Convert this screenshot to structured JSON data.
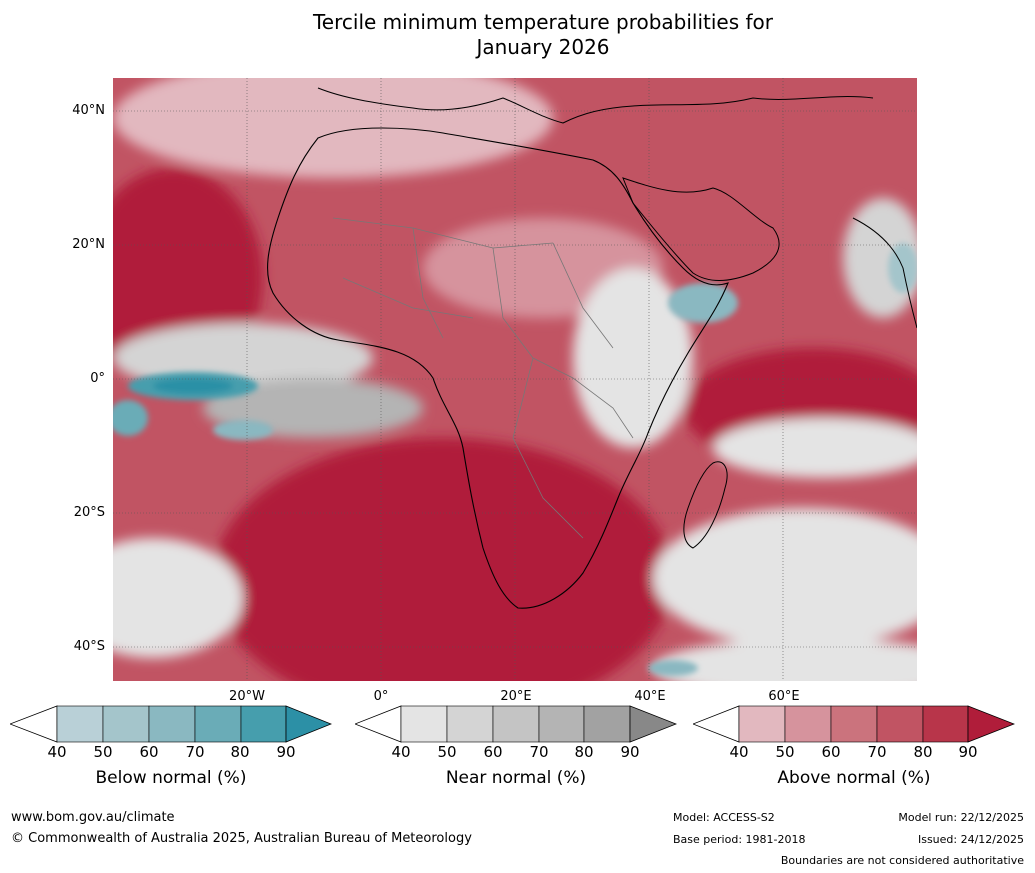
{
  "title": {
    "line1": "Tercile minimum temperature probabilities for",
    "line2": "January 2026"
  },
  "axes": {
    "lat_labels": [
      "40°N",
      "20°N",
      "0°",
      "20°S",
      "40°S"
    ],
    "lon_labels": [
      "20°W",
      "0°",
      "20°E",
      "40°E",
      "60°E"
    ]
  },
  "colorbars": [
    {
      "caption": "Below normal (%)",
      "ticks": [
        "40",
        "50",
        "60",
        "70",
        "80",
        "90"
      ],
      "colors": [
        "#ffffff",
        "#b9d0d7",
        "#a4c5cb",
        "#8ab8c1",
        "#6aacb7",
        "#469ead",
        "#2c90a6"
      ]
    },
    {
      "caption": "Near normal (%)",
      "ticks": [
        "40",
        "50",
        "60",
        "70",
        "80",
        "90"
      ],
      "colors": [
        "#ffffff",
        "#e4e4e4",
        "#d4d4d4",
        "#c4c4c4",
        "#b4b4b4",
        "#a2a2a2",
        "#888888"
      ]
    },
    {
      "caption": "Above normal (%)",
      "ticks": [
        "40",
        "50",
        "60",
        "70",
        "80",
        "90"
      ],
      "colors": [
        "#ffffff",
        "#e2b8bf",
        "#d6939d",
        "#cb737d",
        "#c15463",
        "#b8354a",
        "#b01d3a"
      ]
    }
  ],
  "footer": {
    "site": "www.bom.gov.au/climate",
    "copyright": "© Commonwealth of Australia 2025, Australian Bureau of Meteorology",
    "model": "Model: ACCESS-S2",
    "base_period": "Base period: 1981-2018",
    "model_run": "Model run: 22/12/2025",
    "issued": "Issued: 24/12/2025",
    "boundaries": "Boundaries are not considered authoritative"
  }
}
